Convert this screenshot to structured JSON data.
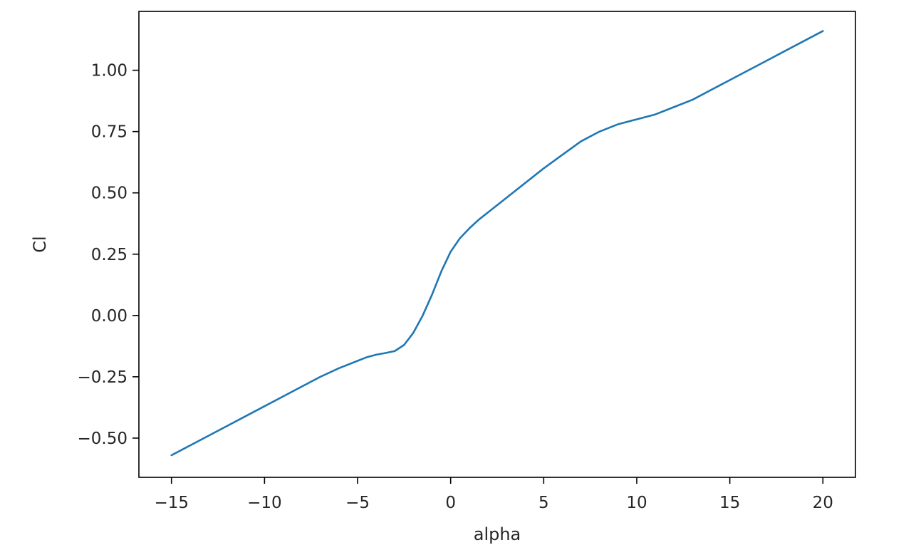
{
  "chart_data": {
    "type": "line",
    "title": "",
    "xlabel": "alpha",
    "ylabel": "Cl",
    "xlim": [
      -16.75,
      21.75
    ],
    "ylim": [
      -0.66,
      1.24
    ],
    "xticks": [
      -15,
      -10,
      -5,
      0,
      5,
      10,
      15,
      20
    ],
    "xtick_labels": [
      "−15",
      "−10",
      "−5",
      "0",
      "5",
      "10",
      "15",
      "20"
    ],
    "yticks": [
      -0.5,
      -0.25,
      0.0,
      0.25,
      0.5,
      0.75,
      1.0
    ],
    "ytick_labels": [
      "−0.50",
      "−0.25",
      "0.00",
      "0.25",
      "0.50",
      "0.75",
      "1.00"
    ],
    "grid": false,
    "legend": "none",
    "line_color": "#1f77b4",
    "series": [
      {
        "x": [
          -15,
          -14,
          -13,
          -12,
          -11,
          -10,
          -9,
          -8,
          -7,
          -6,
          -5,
          -4.5,
          -4,
          -3.5,
          -3,
          -2.5,
          -2,
          -1.5,
          -1,
          -0.5,
          0,
          0.5,
          1,
          1.5,
          2,
          3,
          4,
          5,
          6,
          7,
          8,
          9,
          10,
          11,
          12,
          13,
          14,
          15,
          16,
          17,
          18,
          19,
          20
        ],
        "y": [
          -0.57,
          -0.53,
          -0.49,
          -0.45,
          -0.41,
          -0.37,
          -0.33,
          -0.29,
          -0.25,
          -0.215,
          -0.185,
          -0.17,
          -0.16,
          -0.153,
          -0.145,
          -0.12,
          -0.07,
          0.0,
          0.085,
          0.18,
          0.26,
          0.315,
          0.355,
          0.39,
          0.42,
          0.48,
          0.54,
          0.6,
          0.655,
          0.71,
          0.75,
          0.78,
          0.8,
          0.82,
          0.85,
          0.88,
          0.92,
          0.96,
          1.0,
          1.04,
          1.08,
          1.12,
          1.16
        ]
      }
    ]
  }
}
